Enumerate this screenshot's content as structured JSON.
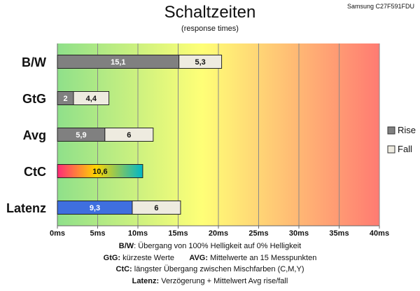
{
  "header": {
    "title": "Schaltzeiten",
    "subtitle": "(response times)",
    "model": "Samsung C27F591FDU"
  },
  "chart_data": {
    "type": "bar",
    "orientation": "horizontal",
    "stacked": true,
    "title": "Schaltzeiten",
    "subtitle": "(response times)",
    "categories": [
      "B/W",
      "GtG",
      "Avg",
      "CtC",
      "Latenz"
    ],
    "series": [
      {
        "name": "Rise",
        "values": [
          15.1,
          2,
          5.9,
          10.6,
          9.3
        ],
        "labels": [
          "15,1",
          "2",
          "5,9",
          "10,6",
          "9,3"
        ]
      },
      {
        "name": "Fall",
        "values": [
          5.3,
          4.4,
          6,
          null,
          6
        ],
        "labels": [
          "5,3",
          "4,4",
          "6",
          "",
          "6"
        ]
      }
    ],
    "xlim": [
      0,
      40
    ],
    "xticks": [
      0,
      5,
      10,
      15,
      20,
      25,
      30,
      35,
      40
    ],
    "xtick_labels": [
      "0ms",
      "5ms",
      "10ms",
      "15ms",
      "20ms",
      "25ms",
      "30ms",
      "35ms",
      "40ms"
    ],
    "grid": true,
    "legend_position": "right",
    "colors": {
      "rise": "#808080",
      "fall": "#eeebe0",
      "ctc_gradient": [
        "#ff2a78",
        "#ffd400",
        "#00b7c8"
      ],
      "latenz": "#3f6fdf",
      "background_gradient": [
        "#8fe08a",
        "#ffff77",
        "#ff7b72"
      ]
    }
  },
  "footnotes": [
    {
      "key": "B/W",
      "text": ":  Übergang von 100% Helligkeit auf 0% Helligkeit"
    },
    {
      "key": "GtG:",
      "text": " kürzeste  Werte",
      "key2": "AVG:",
      "text2": " Mittelwerte  an 15 Messpunkten"
    },
    {
      "key": "CtC:",
      "text": " längster Übergang  zwischen Mischfarben  (C,M,Y)"
    },
    {
      "key": "Latenz:",
      "text": " Verzögerung  + Mittelwert  Avg rise/fall"
    }
  ]
}
